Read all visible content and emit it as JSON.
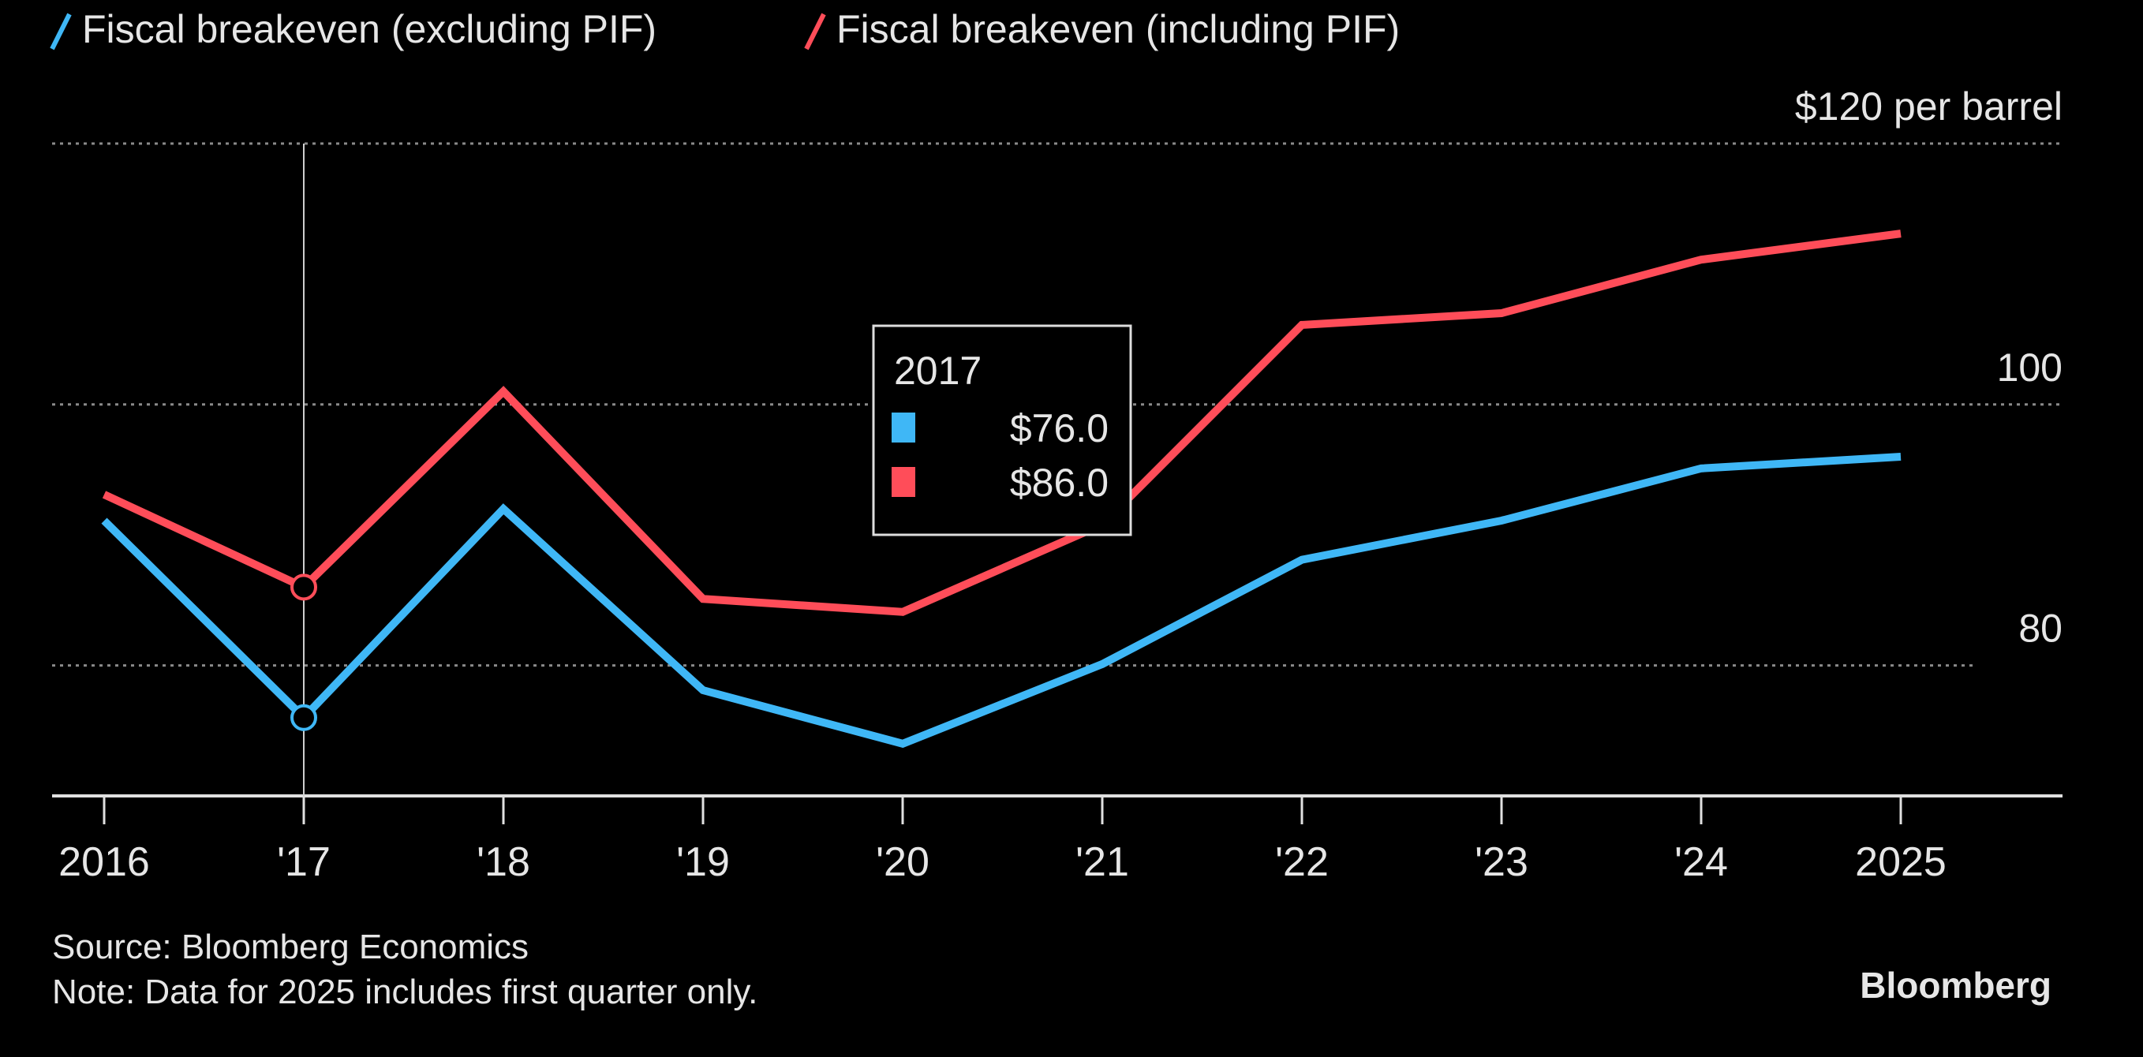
{
  "chart_data": {
    "type": "line",
    "x": [
      2016,
      2017,
      2018,
      2019,
      2020,
      2021,
      2022,
      2023,
      2024,
      2025
    ],
    "x_tick_labels": [
      "2016",
      "'17",
      "'18",
      "'19",
      "'20",
      "'21",
      "'22",
      "'23",
      "'24",
      "2025"
    ],
    "series": [
      {
        "name": "Fiscal breakeven (excluding PIF)",
        "color": "#3fb7f6",
        "values": [
          91.1,
          76.0,
          92.0,
          78.1,
          74.0,
          80.1,
          88.1,
          91.1,
          95.1,
          96.0
        ]
      },
      {
        "name": "Fiscal breakeven (including PIF)",
        "color": "#ff4d59",
        "values": [
          93.1,
          86.0,
          101.0,
          85.1,
          84.1,
          90.8,
          106.1,
          107.0,
          111.1,
          113.1
        ]
      }
    ],
    "y_ticks": [
      80,
      100,
      120
    ],
    "y_tick_labels": [
      "80",
      "100",
      "$120 per barrel"
    ],
    "ylim": [
      70,
      120
    ],
    "grid": "horizontal dotted",
    "legend_placement": "top-left",
    "tooltip": {
      "year": "2017",
      "values": [
        "$76.0",
        "$86.0"
      ],
      "index": 1
    },
    "source": "Source: Bloomberg Economics",
    "note": "Note: Data for 2025 includes first quarter only.",
    "brand": "Bloomberg"
  }
}
